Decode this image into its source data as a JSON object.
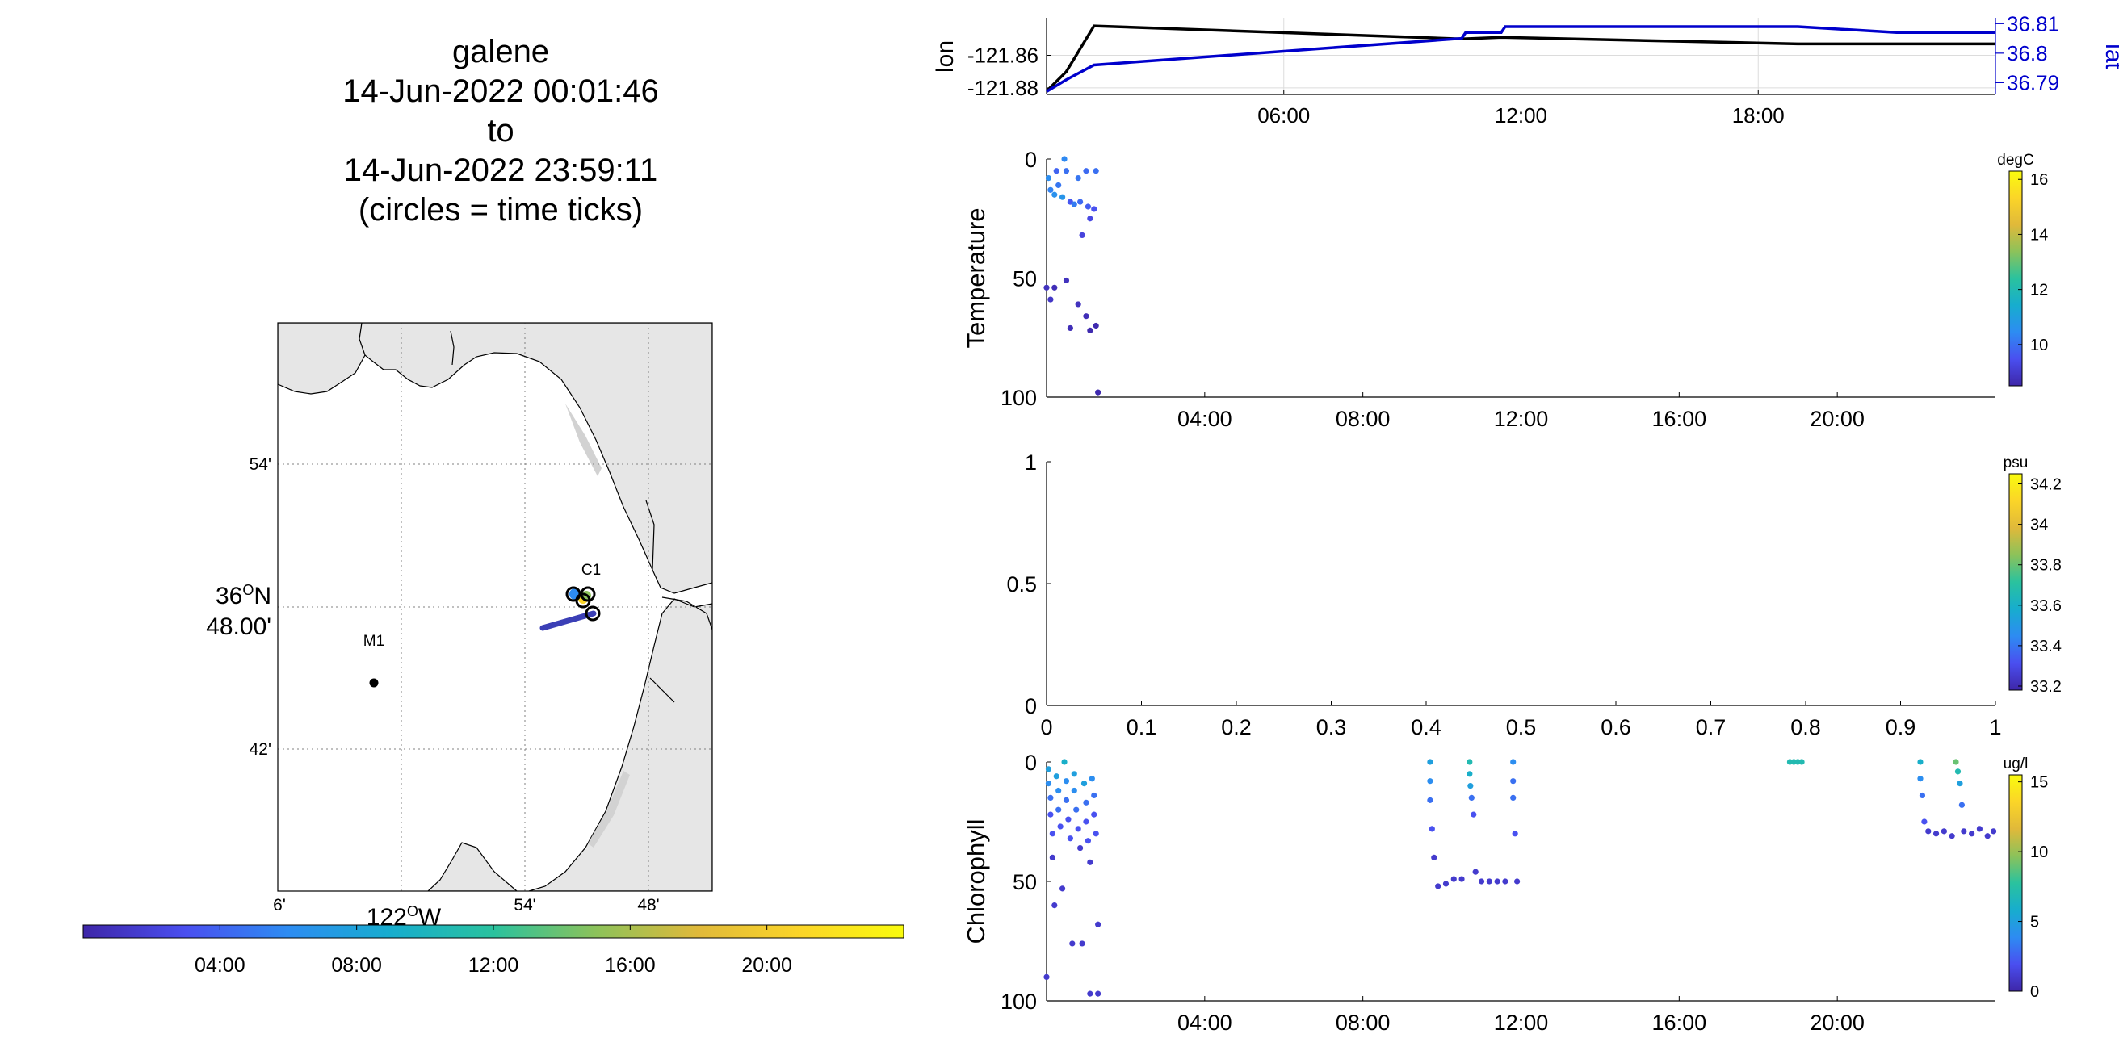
{
  "title_lines": [
    "galene",
    "14-Jun-2022 00:01:46",
    "to",
    "14-Jun-2022 23:59:11",
    "(circles = time ticks)"
  ],
  "map": {
    "lat_ticks": [
      "54'",
      "42'"
    ],
    "lat_center_label_line1": "36",
    "lat_center_label_sup": "O",
    "lat_center_label_n": "N",
    "lat_center_label_line2": "48.00'",
    "lon_ticks": [
      "6'",
      "54'",
      "48'"
    ],
    "lon_center_label": "122",
    "lon_center_label_sup": "O",
    "lon_center_label_w": "W",
    "stations": [
      {
        "name": "M1",
        "lat": 36.747,
        "lon": -122.022
      },
      {
        "name": "C1",
        "lat": 36.797,
        "lon": -121.847
      }
    ],
    "colors": {
      "land": "#e6e6e6",
      "coast": "#000000",
      "grid": "#808080",
      "track": "#3b3fb6"
    }
  },
  "time_colorbar": {
    "ticks": [
      "04:00",
      "08:00",
      "12:00",
      "16:00",
      "20:00"
    ],
    "colormap": [
      "#3e26a8",
      "#4a4ff0",
      "#2d8cf2",
      "#17adce",
      "#2ac29e",
      "#8cc25a",
      "#e0b93a",
      "#fbd528",
      "#f9fb0e"
    ]
  },
  "chart_data": [
    {
      "type": "line",
      "name": "lon-lat panel",
      "x_unit": "hours",
      "xlim": [
        0,
        24
      ],
      "x_ticks": [
        "06:00",
        "12:00",
        "18:00"
      ],
      "ylabel_left": "lon",
      "ylabel_right": "lat",
      "left_ticks": [
        "-121.86",
        "-121.88"
      ],
      "right_ticks": [
        "36.81",
        "36.8",
        "36.79"
      ],
      "left_ylim": [
        -121.884,
        -121.837
      ],
      "right_ylim": [
        36.786,
        36.812
      ],
      "series": [
        {
          "name": "lon",
          "color": "#000000",
          "axis": "left",
          "x": [
            0,
            0.5,
            1.2,
            10.5,
            11.5,
            19,
            24
          ],
          "y": [
            -121.882,
            -121.87,
            -121.842,
            -121.85,
            -121.849,
            -121.853,
            -121.853
          ]
        },
        {
          "name": "lat",
          "color": "#0000cc",
          "axis": "right",
          "x": [
            0,
            0.5,
            1.2,
            10.5,
            10.6,
            11.5,
            11.6,
            19,
            21.5,
            24
          ],
          "y": [
            36.787,
            36.791,
            36.796,
            36.805,
            36.807,
            36.807,
            36.809,
            36.809,
            36.807,
            36.807
          ]
        }
      ]
    },
    {
      "type": "scatter",
      "name": "temperature panel",
      "ylabel": "Temperature",
      "xlim": [
        0,
        24
      ],
      "ylim": [
        0,
        100
      ],
      "y_reversed": true,
      "x_ticks": [
        "04:00",
        "08:00",
        "12:00",
        "16:00",
        "20:00"
      ],
      "y_ticks": [
        "0",
        "50",
        "100"
      ],
      "colorbar": {
        "unit": "degC",
        "ticks": [
          "16",
          "14",
          "12",
          "10"
        ],
        "range": [
          8.5,
          16.3
        ]
      },
      "points": [
        {
          "x": 0.05,
          "y": 8,
          "v": 10.5
        },
        {
          "x": 0.1,
          "y": 13,
          "v": 10.3
        },
        {
          "x": 0.2,
          "y": 15,
          "v": 10.6
        },
        {
          "x": 0.25,
          "y": 5,
          "v": 9.8
        },
        {
          "x": 0.3,
          "y": 11,
          "v": 10.1
        },
        {
          "x": 0.4,
          "y": 16,
          "v": 10.7
        },
        {
          "x": 0.45,
          "y": 0,
          "v": 10.4
        },
        {
          "x": 0.5,
          "y": 5,
          "v": 10.0
        },
        {
          "x": 0.6,
          "y": 18,
          "v": 9.6
        },
        {
          "x": 0.7,
          "y": 19,
          "v": 10.2
        },
        {
          "x": 0.8,
          "y": 8,
          "v": 10.1
        },
        {
          "x": 0.85,
          "y": 18,
          "v": 9.9
        },
        {
          "x": 0.9,
          "y": 32,
          "v": 9.2
        },
        {
          "x": 1.0,
          "y": 5,
          "v": 9.9
        },
        {
          "x": 1.05,
          "y": 20,
          "v": 9.7
        },
        {
          "x": 1.1,
          "y": 25,
          "v": 9.3
        },
        {
          "x": 1.2,
          "y": 21,
          "v": 9.5
        },
        {
          "x": 1.25,
          "y": 5,
          "v": 10.0
        },
        {
          "x": 0.0,
          "y": 54,
          "v": 8.8
        },
        {
          "x": 0.1,
          "y": 59,
          "v": 8.9
        },
        {
          "x": 0.2,
          "y": 54,
          "v": 8.7
        },
        {
          "x": 0.5,
          "y": 51,
          "v": 8.8
        },
        {
          "x": 0.6,
          "y": 71,
          "v": 8.7
        },
        {
          "x": 0.8,
          "y": 61,
          "v": 8.8
        },
        {
          "x": 1.0,
          "y": 66,
          "v": 8.7
        },
        {
          "x": 1.1,
          "y": 72,
          "v": 8.6
        },
        {
          "x": 1.25,
          "y": 70,
          "v": 8.6
        },
        {
          "x": 1.3,
          "y": 98,
          "v": 8.6
        }
      ]
    },
    {
      "type": "scatter",
      "name": "salinity panel",
      "xlim": [
        0,
        1
      ],
      "ylim": [
        0,
        1
      ],
      "x_ticks": [
        "0",
        "0.1",
        "0.2",
        "0.3",
        "0.4",
        "0.5",
        "0.6",
        "0.7",
        "0.8",
        "0.9",
        "1"
      ],
      "y_ticks": [
        "1",
        "0.5",
        "0"
      ],
      "colorbar": {
        "unit": "psu",
        "ticks": [
          "34.2",
          "34",
          "33.8",
          "33.6",
          "33.4",
          "33.2"
        ],
        "range": [
          33.18,
          34.25
        ]
      },
      "points": []
    },
    {
      "type": "scatter",
      "name": "chlorophyll panel",
      "ylabel": "Chlorophyll",
      "xlim": [
        0,
        24
      ],
      "ylim": [
        0,
        100
      ],
      "y_reversed": true,
      "x_ticks": [
        "04:00",
        "08:00",
        "12:00",
        "16:00",
        "20:00"
      ],
      "y_ticks": [
        "0",
        "50",
        "100"
      ],
      "colorbar": {
        "unit": "ug/l",
        "ticks": [
          "15",
          "10",
          "5",
          "0"
        ],
        "range": [
          0,
          15.5
        ]
      },
      "points": [
        {
          "x": 0.0,
          "y": 90,
          "v": 1
        },
        {
          "x": 0.05,
          "y": 3,
          "v": 5
        },
        {
          "x": 0.05,
          "y": 9,
          "v": 4
        },
        {
          "x": 0.1,
          "y": 15,
          "v": 3
        },
        {
          "x": 0.1,
          "y": 22,
          "v": 2
        },
        {
          "x": 0.15,
          "y": 30,
          "v": 2
        },
        {
          "x": 0.15,
          "y": 40,
          "v": 1
        },
        {
          "x": 0.2,
          "y": 60,
          "v": 1
        },
        {
          "x": 0.25,
          "y": 6,
          "v": 5
        },
        {
          "x": 0.3,
          "y": 12,
          "v": 4
        },
        {
          "x": 0.3,
          "y": 20,
          "v": 3
        },
        {
          "x": 0.35,
          "y": 27,
          "v": 2
        },
        {
          "x": 0.4,
          "y": 53,
          "v": 1
        },
        {
          "x": 0.45,
          "y": 0,
          "v": 6
        },
        {
          "x": 0.5,
          "y": 8,
          "v": 4
        },
        {
          "x": 0.5,
          "y": 16,
          "v": 3
        },
        {
          "x": 0.55,
          "y": 24,
          "v": 2
        },
        {
          "x": 0.6,
          "y": 32,
          "v": 2
        },
        {
          "x": 0.65,
          "y": 76,
          "v": 1
        },
        {
          "x": 0.7,
          "y": 5,
          "v": 5
        },
        {
          "x": 0.7,
          "y": 12,
          "v": 4
        },
        {
          "x": 0.75,
          "y": 20,
          "v": 3
        },
        {
          "x": 0.8,
          "y": 28,
          "v": 2
        },
        {
          "x": 0.85,
          "y": 36,
          "v": 1
        },
        {
          "x": 0.9,
          "y": 76,
          "v": 1
        },
        {
          "x": 0.95,
          "y": 9,
          "v": 5
        },
        {
          "x": 1.0,
          "y": 17,
          "v": 3
        },
        {
          "x": 1.0,
          "y": 25,
          "v": 2
        },
        {
          "x": 1.05,
          "y": 33,
          "v": 2
        },
        {
          "x": 1.1,
          "y": 42,
          "v": 1
        },
        {
          "x": 1.15,
          "y": 7,
          "v": 4
        },
        {
          "x": 1.2,
          "y": 14,
          "v": 3
        },
        {
          "x": 1.2,
          "y": 22,
          "v": 2
        },
        {
          "x": 1.25,
          "y": 30,
          "v": 2
        },
        {
          "x": 1.3,
          "y": 68,
          "v": 1
        },
        {
          "x": 1.1,
          "y": 97,
          "v": 1
        },
        {
          "x": 1.3,
          "y": 97,
          "v": 1
        },
        {
          "x": 9.7,
          "y": 0,
          "v": 5
        },
        {
          "x": 9.7,
          "y": 8,
          "v": 4
        },
        {
          "x": 9.7,
          "y": 16,
          "v": 3
        },
        {
          "x": 9.75,
          "y": 28,
          "v": 2
        },
        {
          "x": 9.8,
          "y": 40,
          "v": 1
        },
        {
          "x": 9.9,
          "y": 52,
          "v": 1
        },
        {
          "x": 10.1,
          "y": 51,
          "v": 1
        },
        {
          "x": 10.3,
          "y": 49,
          "v": 1
        },
        {
          "x": 10.5,
          "y": 49,
          "v": 1
        },
        {
          "x": 10.7,
          "y": 0,
          "v": 7
        },
        {
          "x": 10.7,
          "y": 5,
          "v": 6
        },
        {
          "x": 10.72,
          "y": 10,
          "v": 5
        },
        {
          "x": 10.75,
          "y": 15,
          "v": 3
        },
        {
          "x": 10.8,
          "y": 22,
          "v": 2
        },
        {
          "x": 10.85,
          "y": 46,
          "v": 1
        },
        {
          "x": 11.0,
          "y": 50,
          "v": 1
        },
        {
          "x": 11.2,
          "y": 50,
          "v": 1
        },
        {
          "x": 11.4,
          "y": 50,
          "v": 1
        },
        {
          "x": 11.6,
          "y": 50,
          "v": 1
        },
        {
          "x": 11.8,
          "y": 0,
          "v": 4
        },
        {
          "x": 11.8,
          "y": 8,
          "v": 3
        },
        {
          "x": 11.8,
          "y": 15,
          "v": 3
        },
        {
          "x": 11.85,
          "y": 30,
          "v": 2
        },
        {
          "x": 11.9,
          "y": 50,
          "v": 1
        },
        {
          "x": 18.8,
          "y": 0,
          "v": 7
        },
        {
          "x": 18.9,
          "y": 0,
          "v": 7
        },
        {
          "x": 19.0,
          "y": 0,
          "v": 7
        },
        {
          "x": 19.1,
          "y": 0,
          "v": 7
        },
        {
          "x": 22.1,
          "y": 0,
          "v": 6
        },
        {
          "x": 22.1,
          "y": 7,
          "v": 4
        },
        {
          "x": 22.15,
          "y": 14,
          "v": 3
        },
        {
          "x": 22.2,
          "y": 25,
          "v": 2
        },
        {
          "x": 22.3,
          "y": 29,
          "v": 1
        },
        {
          "x": 22.5,
          "y": 30,
          "v": 1
        },
        {
          "x": 22.7,
          "y": 29,
          "v": 1
        },
        {
          "x": 22.9,
          "y": 31,
          "v": 1
        },
        {
          "x": 23.0,
          "y": 0,
          "v": 9
        },
        {
          "x": 23.05,
          "y": 4,
          "v": 7
        },
        {
          "x": 23.1,
          "y": 9,
          "v": 5
        },
        {
          "x": 23.15,
          "y": 18,
          "v": 3
        },
        {
          "x": 23.2,
          "y": 29,
          "v": 1
        },
        {
          "x": 23.4,
          "y": 30,
          "v": 1
        },
        {
          "x": 23.6,
          "y": 28,
          "v": 1
        },
        {
          "x": 23.8,
          "y": 31,
          "v": 1
        },
        {
          "x": 23.95,
          "y": 29,
          "v": 1
        }
      ]
    }
  ]
}
